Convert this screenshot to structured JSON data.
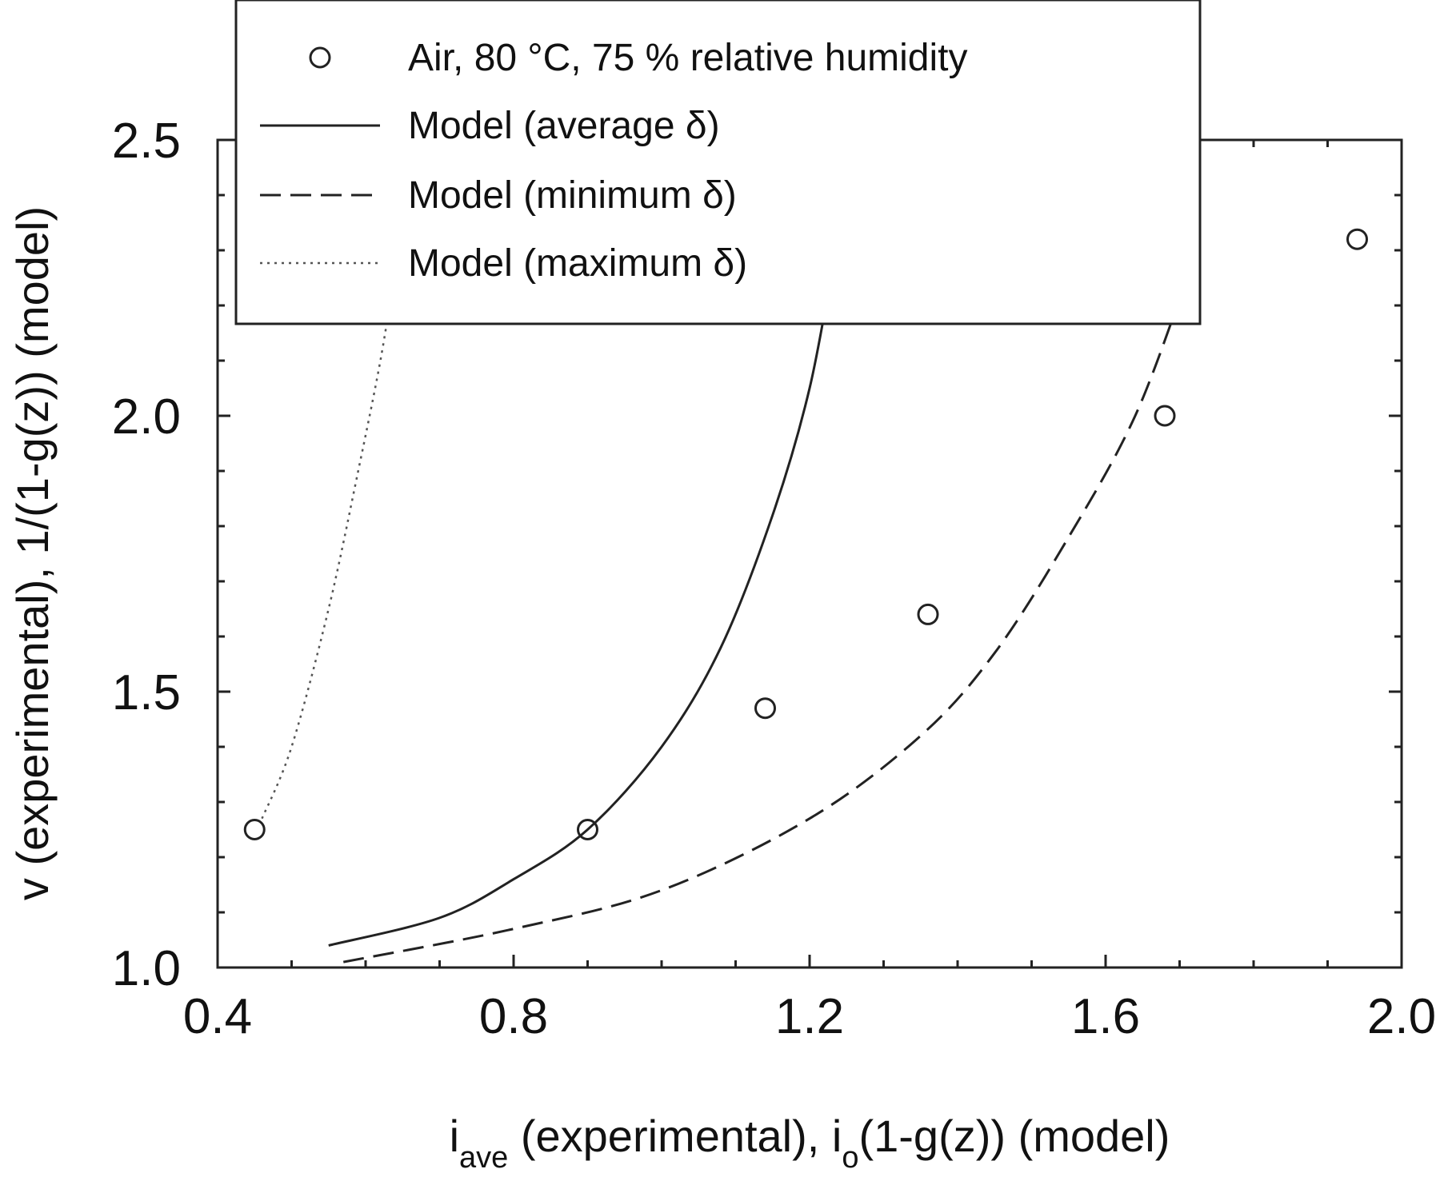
{
  "chart_data": {
    "type": "scatter",
    "xlabel": {
      "main": "i",
      "sub1": "ave",
      "mid": " (experimental), i",
      "sub2": "o",
      "tail": "(1-g(z)) (model)"
    },
    "ylabel": "v (experimental), 1/(1-g(z)) (model)",
    "xlim": [
      0.4,
      2.0
    ],
    "ylim": [
      1.0,
      2.5
    ],
    "x_ticks": [
      0.4,
      0.8,
      1.2,
      1.6,
      2.0
    ],
    "x_tick_labels": [
      "0.4",
      "0.8",
      "1.2",
      "1.6",
      "2.0"
    ],
    "y_ticks": [
      1.0,
      1.5,
      2.0,
      2.5
    ],
    "y_tick_labels": [
      "1.0",
      "1.5",
      "2.0",
      "2.5"
    ],
    "grid": false,
    "legend_position": "top",
    "series": [
      {
        "name": "Air, 80 °C, 75 % relative humidity",
        "kind": "points",
        "x": [
          0.45,
          0.9,
          1.14,
          1.36,
          1.68,
          1.94
        ],
        "y": [
          1.25,
          1.25,
          1.47,
          1.64,
          2.0,
          2.32
        ]
      },
      {
        "name": "Model (average δ)",
        "kind": "line",
        "style": "solid",
        "x": [
          0.55,
          0.7,
          0.8,
          0.9,
          1.0,
          1.08,
          1.15,
          1.2,
          1.235
        ],
        "y": [
          1.04,
          1.09,
          1.16,
          1.25,
          1.4,
          1.58,
          1.82,
          2.05,
          2.3
        ]
      },
      {
        "name": "Model (minimum δ)",
        "kind": "line",
        "style": "dashed",
        "x": [
          0.57,
          0.8,
          1.0,
          1.2,
          1.35,
          1.45,
          1.55,
          1.64,
          1.71
        ],
        "y": [
          1.01,
          1.07,
          1.14,
          1.27,
          1.42,
          1.57,
          1.78,
          2.0,
          2.25
        ]
      },
      {
        "name": "Model (maximum δ)",
        "kind": "line",
        "style": "dotted",
        "x": [
          0.46,
          0.5,
          0.55,
          0.59,
          0.62,
          0.638
        ],
        "y": [
          1.27,
          1.4,
          1.65,
          1.9,
          2.1,
          2.25
        ]
      }
    ]
  }
}
